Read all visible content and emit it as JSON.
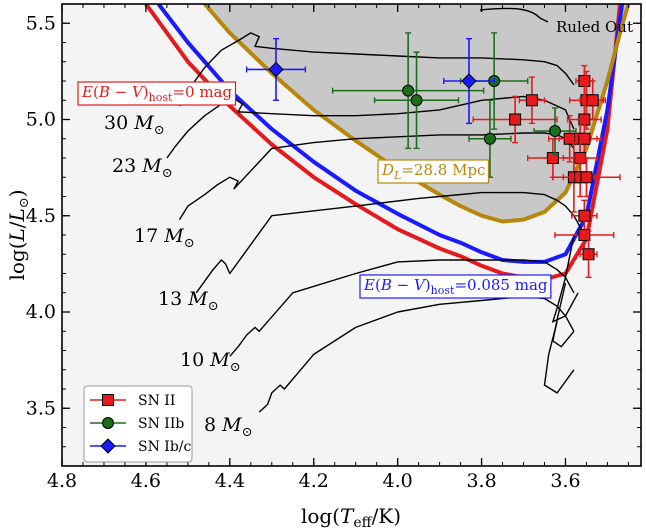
{
  "chart_data": {
    "type": "scatter",
    "title": "",
    "xlabel": "log(T_eff/K)",
    "ylabel": "log(L/L_⊙)",
    "xlim": [
      4.8,
      3.42
    ],
    "ylim": [
      3.2,
      5.6
    ],
    "xticks": [
      "4.8",
      "4.6",
      "4.4",
      "4.2",
      "4.0",
      "3.8",
      "3.6"
    ],
    "yticks": [
      "3.5",
      "4.0",
      "4.5",
      "5.0",
      "5.5"
    ],
    "colors": {
      "sn2": "#e41a1c",
      "sn2b": "#1b6e1b",
      "sn1bc": "#1a1aff",
      "dl_curve": "#b8860b",
      "excluded_fill": "#c8c8c8"
    },
    "annotations": {
      "ruled_out": "Ruled Out",
      "ebv0": "E(B − V)host=0 mag",
      "ebv0_parts": [
        "E",
        "(",
        "B",
        " − ",
        "V",
        ")",
        "host",
        "=0 mag"
      ],
      "ebv085_parts": [
        "E",
        "(",
        "B",
        " − ",
        "V",
        ")",
        "host",
        "=0.085 mag"
      ],
      "dl_parts": [
        "D",
        "L",
        "=28.8 Mpc"
      ]
    },
    "mass_labels": [
      {
        "text": "30",
        "unit": "M⊙"
      },
      {
        "text": "23",
        "unit": "M⊙"
      },
      {
        "text": "17",
        "unit": "M⊙"
      },
      {
        "text": "13",
        "unit": "M⊙"
      },
      {
        "text": "10",
        "unit": "M⊙"
      },
      {
        "text": "8",
        "unit": "M⊙"
      }
    ],
    "legend": {
      "placement": "lower-left",
      "entries": [
        {
          "label": "SN II",
          "marker": "square",
          "color": "#e41a1c"
        },
        {
          "label": "SN IIb",
          "marker": "circle",
          "color": "#1b6e1b"
        },
        {
          "label": "SN Ib/c",
          "marker": "diamond",
          "color": "#1a1aff"
        }
      ]
    },
    "boundary_curves": [
      {
        "label": "E(B−V)host=0 mag",
        "color": "#e41a1c",
        "x": [
          4.6,
          4.5,
          4.4,
          4.3,
          4.2,
          4.1,
          4.0,
          3.9,
          3.85,
          3.8,
          3.75,
          3.7,
          3.65,
          3.6,
          3.55,
          3.5,
          3.47
        ],
        "y": [
          5.6,
          5.3,
          5.07,
          4.87,
          4.7,
          4.56,
          4.43,
          4.33,
          4.29,
          4.24,
          4.2,
          4.18,
          4.17,
          4.2,
          4.38,
          4.95,
          5.6
        ]
      },
      {
        "label": "E(B−V)host=0.085 mag",
        "color": "#1a1aff",
        "x": [
          4.57,
          4.5,
          4.4,
          4.3,
          4.2,
          4.1,
          4.0,
          3.9,
          3.85,
          3.8,
          3.75,
          3.7,
          3.65,
          3.6,
          3.55,
          3.5,
          3.465
        ],
        "y": [
          5.6,
          5.4,
          5.15,
          4.95,
          4.78,
          4.63,
          4.51,
          4.4,
          4.36,
          4.31,
          4.27,
          4.26,
          4.26,
          4.3,
          4.5,
          5.05,
          5.6
        ]
      },
      {
        "label": "D_L=28.8 Mpc",
        "color": "#b8860b",
        "x": [
          4.46,
          4.4,
          4.3,
          4.2,
          4.1,
          4.0,
          3.9,
          3.85,
          3.8,
          3.75,
          3.7,
          3.65,
          3.6,
          3.55,
          3.5,
          3.47,
          3.45
        ],
        "y": [
          5.6,
          5.45,
          5.24,
          5.05,
          4.89,
          4.74,
          4.61,
          4.55,
          4.5,
          4.47,
          4.48,
          4.52,
          4.62,
          4.85,
          5.2,
          5.45,
          5.6
        ]
      }
    ],
    "tracks": [
      {
        "mass": 30,
        "x": [
          4.52,
          4.5,
          4.46,
          4.42,
          4.38,
          4.35,
          4.33,
          4.34,
          4.3,
          4.2,
          4.1,
          4.0,
          3.9,
          3.8,
          3.7,
          3.65,
          3.62,
          3.6,
          3.58
        ],
        "y": [
          5.07,
          5.15,
          5.27,
          5.36,
          5.41,
          5.45,
          5.43,
          5.38,
          5.37,
          5.35,
          5.34,
          5.33,
          5.32,
          5.32,
          5.31,
          5.3,
          5.28,
          5.24,
          5.18
        ]
      },
      {
        "mass": 23,
        "x": [
          4.55,
          4.53,
          4.5,
          4.46,
          4.42,
          4.39,
          4.37,
          4.38,
          4.3,
          4.2,
          4.1,
          4.0,
          3.9,
          3.8,
          3.7,
          3.65,
          3.6,
          3.58
        ],
        "y": [
          4.8,
          4.86,
          4.94,
          5.02,
          5.08,
          5.11,
          5.08,
          5.04,
          5.03,
          5.02,
          5.02,
          5.03,
          5.05,
          5.1,
          5.12,
          5.1,
          5.05,
          4.95
        ]
      },
      {
        "mass": 17,
        "x": [
          4.52,
          4.5,
          4.46,
          4.43,
          4.4,
          4.38,
          4.39,
          4.3,
          4.2,
          4.1,
          4.0,
          3.9,
          3.8,
          3.7,
          3.65,
          3.62,
          3.6,
          3.58
        ],
        "y": [
          4.48,
          4.55,
          4.61,
          4.66,
          4.7,
          4.68,
          4.64,
          4.85,
          4.88,
          4.9,
          4.91,
          4.92,
          4.92,
          4.93,
          4.93,
          4.92,
          4.9,
          4.85
        ]
      },
      {
        "mass": 13,
        "x": [
          4.48,
          4.46,
          4.44,
          4.42,
          4.41,
          4.4,
          4.3,
          4.1,
          3.95,
          3.9,
          3.8,
          3.7,
          3.65,
          3.62,
          3.6,
          3.58,
          3.56
        ],
        "y": [
          4.1,
          4.16,
          4.22,
          4.27,
          4.25,
          4.2,
          4.5,
          4.55,
          4.59,
          4.6,
          4.62,
          4.62,
          4.61,
          4.58,
          4.55,
          4.5,
          4.42
        ]
      },
      {
        "mass": 10,
        "x": [
          4.4,
          4.38,
          4.36,
          4.34,
          4.33,
          4.25,
          4.1,
          4.0,
          3.9,
          3.8,
          3.7,
          3.65,
          3.62,
          3.6,
          3.58
        ],
        "y": [
          3.77,
          3.82,
          3.88,
          3.92,
          3.9,
          4.1,
          4.2,
          4.26,
          4.27,
          4.27,
          4.27,
          4.26,
          4.22,
          4.18,
          4.1
        ]
      },
      {
        "mass": 8,
        "x": [
          4.33,
          4.31,
          4.3,
          4.28,
          4.27,
          4.2,
          4.1,
          4.0,
          3.9,
          3.8,
          3.7,
          3.65,
          3.62,
          3.6,
          3.58
        ],
        "y": [
          3.48,
          3.52,
          3.58,
          3.62,
          3.6,
          3.78,
          3.92,
          4.0,
          4.04,
          4.06,
          4.08,
          4.07,
          4.03,
          3.98,
          3.9
        ]
      }
    ],
    "rsg_branches": [
      {
        "x": [
          3.58,
          3.6,
          3.62,
          3.63,
          3.6,
          3.57
        ],
        "y": [
          4.4,
          4.18,
          4.02,
          3.95,
          3.98,
          4.1
        ]
      },
      {
        "x": [
          3.6,
          3.62,
          3.63,
          3.61,
          3.58
        ],
        "y": [
          4.15,
          3.96,
          3.85,
          3.82,
          3.9
        ]
      },
      {
        "x": [
          3.62,
          3.64,
          3.65,
          3.62,
          3.58
        ],
        "y": [
          3.95,
          3.78,
          3.62,
          3.58,
          3.7
        ]
      }
    ],
    "series": [
      {
        "name": "SN II",
        "marker": "square",
        "color": "#e41a1c",
        "points": [
          {
            "x": 3.555,
            "y": 5.2,
            "xerr": 0.02,
            "yerr": 0.08
          },
          {
            "x": 3.55,
            "y": 5.1,
            "xerr": 0.04,
            "yerr": 0.15
          },
          {
            "x": 3.535,
            "y": 5.1,
            "xerr": 0.03,
            "yerr": 0.1
          },
          {
            "x": 3.68,
            "y": 5.1,
            "xerr": 0.03,
            "yerr": 0.12
          },
          {
            "x": 3.72,
            "y": 5.0,
            "xerr": 0.1,
            "yerr": 0.12
          },
          {
            "x": 3.555,
            "y": 5.0,
            "xerr": 0.04,
            "yerr": 0.2
          },
          {
            "x": 3.59,
            "y": 4.9,
            "xerr": 0.05,
            "yerr": 0.12
          },
          {
            "x": 3.565,
            "y": 4.9,
            "xerr": 0.05,
            "yerr": 0.1
          },
          {
            "x": 3.555,
            "y": 4.9,
            "xerr": 0.03,
            "yerr": 0.12
          },
          {
            "x": 3.63,
            "y": 4.8,
            "xerr": 0.06,
            "yerr": 0.1
          },
          {
            "x": 3.565,
            "y": 4.8,
            "xerr": 0.04,
            "yerr": 0.12
          },
          {
            "x": 3.58,
            "y": 4.7,
            "xerr": 0.05,
            "yerr": 0.18
          },
          {
            "x": 3.565,
            "y": 4.7,
            "xerr": 0.04,
            "yerr": 0.1
          },
          {
            "x": 3.55,
            "y": 4.7,
            "xerr": 0.08,
            "yerr": 0.1
          },
          {
            "x": 3.555,
            "y": 4.5,
            "xerr": 0.03,
            "yerr": 0.08
          },
          {
            "x": 3.555,
            "y": 4.4,
            "xerr": 0.07,
            "yerr": 0.1
          },
          {
            "x": 3.545,
            "y": 4.3,
            "xerr": 0.02,
            "yerr": 0.12
          }
        ]
      },
      {
        "name": "SN IIb",
        "marker": "circle",
        "color": "#1b6e1b",
        "points": [
          {
            "x": 3.975,
            "y": 5.15,
            "xerr": 0.18,
            "yerr": 0.3
          },
          {
            "x": 3.955,
            "y": 5.1,
            "xerr": 0.1,
            "yerr": 0.25
          },
          {
            "x": 3.77,
            "y": 5.2,
            "xerr": 0.08,
            "yerr": 0.25
          },
          {
            "x": 3.78,
            "y": 4.9,
            "xerr": 0.05,
            "yerr": 0.2
          },
          {
            "x": 3.625,
            "y": 4.94,
            "xerr": 0.05,
            "yerr": 0.12
          }
        ]
      },
      {
        "name": "SN Ib/c",
        "marker": "diamond",
        "color": "#1a1aff",
        "points": [
          {
            "x": 4.29,
            "y": 5.26,
            "xerr": 0.07,
            "yerr": 0.16
          },
          {
            "x": 3.83,
            "y": 5.2,
            "xerr": 0.06,
            "yerr": 0.22
          }
        ]
      }
    ]
  }
}
